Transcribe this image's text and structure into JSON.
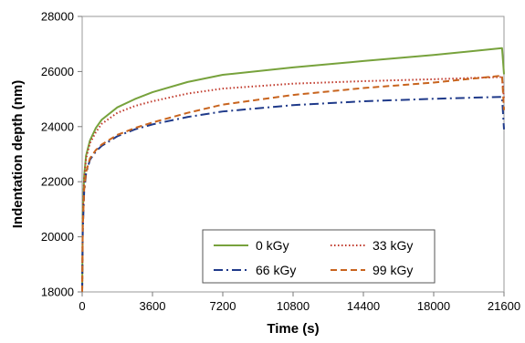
{
  "chart_data": {
    "type": "line",
    "xlabel": "Time (s)",
    "ylabel": "Indentation depth (nm)",
    "xlim": [
      0,
      21600
    ],
    "ylim": [
      18000,
      28000
    ],
    "xticks": [
      0,
      3600,
      7200,
      10800,
      14400,
      18000,
      21600
    ],
    "yticks": [
      18000,
      20000,
      22000,
      24000,
      26000,
      28000
    ],
    "xtick_labels": [
      "0",
      "3600",
      "7200",
      "10800",
      "14400",
      "18000",
      "21600"
    ],
    "ytick_labels": [
      "18000",
      "20000",
      "22000",
      "24000",
      "26000",
      "28000"
    ],
    "grid": false,
    "legend_position": "bottom-right",
    "series": [
      {
        "name": "0 kGy",
        "color": "#77a23c",
        "dash": "solid",
        "x": [
          0,
          30,
          100,
          200,
          400,
          700,
          1000,
          1800,
          2700,
          3600,
          5400,
          7200,
          10800,
          14400,
          18000,
          21500,
          21600
        ],
        "y": [
          18000,
          20800,
          22200,
          22950,
          23500,
          23950,
          24250,
          24700,
          25000,
          25250,
          25620,
          25880,
          26150,
          26380,
          26600,
          26850,
          25900
        ]
      },
      {
        "name": "33 kGy",
        "color": "#c0392b",
        "dash": "dot",
        "x": [
          0,
          30,
          100,
          200,
          400,
          700,
          1000,
          1800,
          2700,
          3600,
          5400,
          7200,
          10800,
          14400,
          18000,
          21500,
          21600
        ],
        "y": [
          18000,
          20600,
          22100,
          22850,
          23400,
          23800,
          24100,
          24500,
          24750,
          24920,
          25200,
          25380,
          25560,
          25650,
          25720,
          25800,
          25000
        ]
      },
      {
        "name": "66 kGy",
        "color": "#1f3a8a",
        "dash": "dashdot",
        "x": [
          0,
          30,
          100,
          200,
          400,
          700,
          1000,
          1800,
          2700,
          3600,
          5400,
          7200,
          10800,
          14400,
          18000,
          21500,
          21600
        ],
        "y": [
          18000,
          20200,
          21600,
          22300,
          22800,
          23100,
          23300,
          23650,
          23900,
          24080,
          24350,
          24550,
          24780,
          24920,
          25010,
          25080,
          23900
        ]
      },
      {
        "name": "99 kGy",
        "color": "#c8641e",
        "dash": "dash",
        "x": [
          0,
          30,
          100,
          200,
          400,
          700,
          1000,
          1800,
          2700,
          3600,
          5400,
          7200,
          10800,
          14400,
          18000,
          21500,
          21600
        ],
        "y": [
          18000,
          20300,
          21700,
          22350,
          22850,
          23150,
          23350,
          23700,
          23950,
          24150,
          24500,
          24800,
          25150,
          25400,
          25600,
          25850,
          24600
        ]
      }
    ]
  }
}
